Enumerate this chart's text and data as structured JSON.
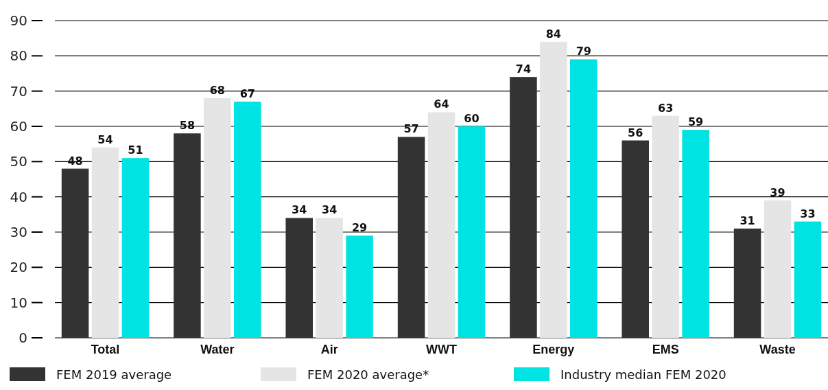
{
  "chart_data": {
    "type": "bar",
    "categories": [
      "Total",
      "Water",
      "Air",
      "WWT",
      "Energy",
      "EMS",
      "Waste"
    ],
    "series": [
      {
        "name": "FEM 2019 average",
        "color": "#333333",
        "values": [
          48,
          58,
          34,
          57,
          74,
          56,
          31
        ]
      },
      {
        "name": "FEM 2020 average*",
        "color": "#e5e5e5",
        "values": [
          54,
          68,
          34,
          64,
          84,
          63,
          39
        ]
      },
      {
        "name": "Industry median FEM 2020",
        "color": "#00e3e3",
        "values": [
          51,
          67,
          29,
          60,
          79,
          59,
          33
        ]
      }
    ],
    "ylim": [
      0,
      90
    ],
    "yticks": [
      0,
      10,
      20,
      30,
      40,
      50,
      60,
      70,
      80,
      90
    ],
    "grid": "y",
    "legend": "bottom",
    "data_labels": true
  }
}
